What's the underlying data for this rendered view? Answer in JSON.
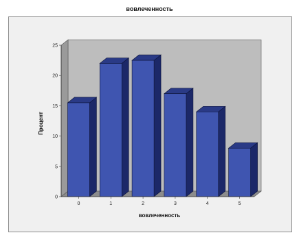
{
  "chart_data": {
    "type": "bar",
    "title": "вовлеченность",
    "xlabel": "вовлеченность",
    "ylabel": "Процент",
    "categories": [
      "0",
      "1",
      "2",
      "3",
      "4",
      "5"
    ],
    "values": [
      15.5,
      22,
      22.5,
      17,
      14,
      8
    ],
    "ylim": [
      0,
      25
    ],
    "yticks": [
      "0",
      "5",
      "10",
      "15",
      "20",
      "25"
    ],
    "grid": false,
    "style": "3d",
    "colors": {
      "bar_front": "#3f55b0",
      "bar_top": "#2a3a86",
      "bar_side": "#1c2868",
      "wall": "#bdbdbd",
      "floor": "#8c8c8c"
    }
  }
}
